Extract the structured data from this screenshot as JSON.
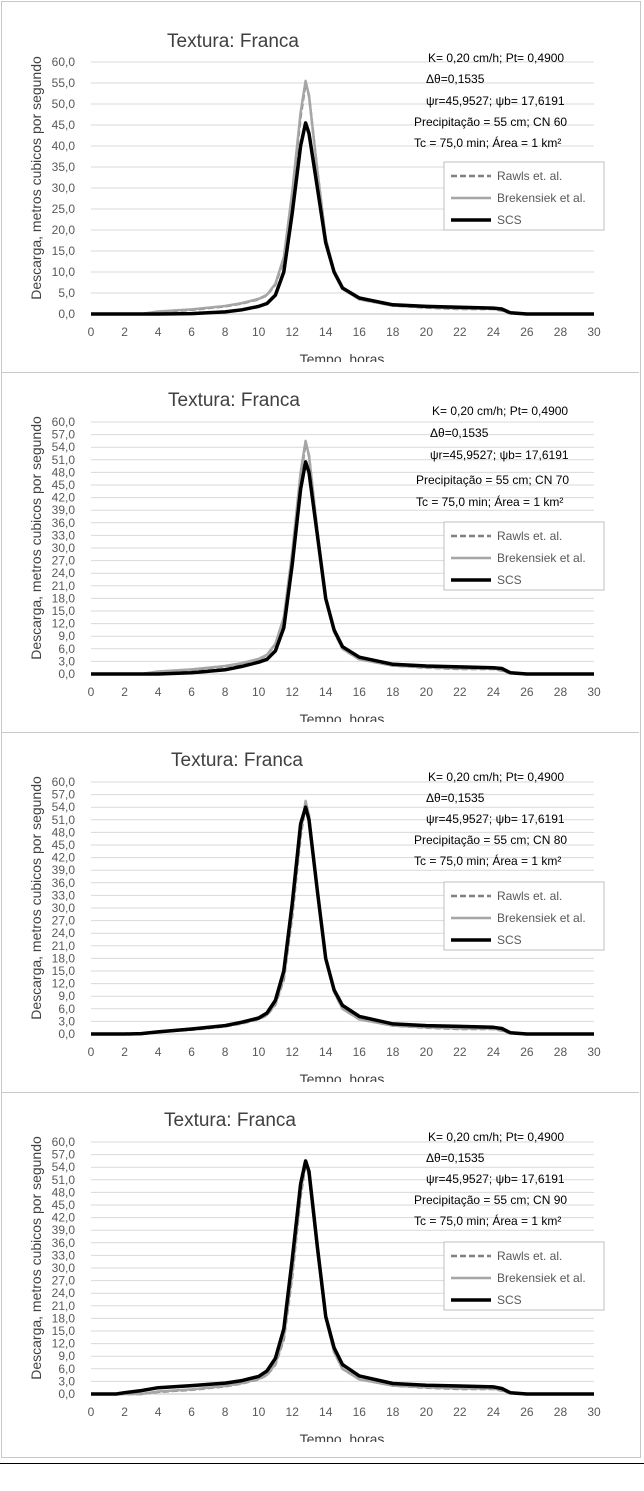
{
  "chart_data": [
    {
      "type": "line",
      "title": "Textura: Franca",
      "xlabel": "Tempo, horas",
      "ylabel": "Descarga, metros cubicos por segundo",
      "xlim": [
        0,
        30
      ],
      "ylim": [
        0,
        60
      ],
      "x_ticks": [
        "0",
        "2",
        "4",
        "6",
        "8",
        "10",
        "12",
        "14",
        "16",
        "18",
        "20",
        "22",
        "24",
        "26",
        "28",
        "30"
      ],
      "y_ticks": [
        "0,0",
        "5,0",
        "10,0",
        "15,0",
        "20,0",
        "25,0",
        "30,0",
        "35,0",
        "40,0",
        "45,0",
        "50,0",
        "55,0",
        "60,0"
      ],
      "annotations": [
        "K= 0,20 cm/h; Pt= 0,4900",
        "Δθ=0,1535",
        "ψr=45,9527;  ψb= 17,6191",
        "Precipitação = 55  cm; CN 60",
        "Tc = 75,0  min; Área = 1 km²"
      ],
      "legend": "right",
      "series": [
        {
          "name": "Rawls et. al.",
          "color": "#808080",
          "style": "dashed",
          "x": [
            0,
            3,
            4,
            6,
            8,
            9,
            10,
            10.5,
            11,
            11.5,
            12,
            12.5,
            12.8,
            13,
            13.5,
            14,
            14.5,
            15,
            16,
            18,
            20,
            22,
            24,
            24.5,
            25,
            26,
            30
          ],
          "y": [
            0,
            0,
            0.5,
            1.0,
            1.8,
            2.5,
            3.5,
            4.5,
            7,
            13,
            28,
            47,
            55,
            52,
            34,
            18,
            10,
            6,
            3.5,
            2,
            1.5,
            1.2,
            1.2,
            0.8,
            0.2,
            0,
            0
          ]
        },
        {
          "name": "Brekensiek et al.",
          "color": "#a6a6a6",
          "style": "solid",
          "x": [
            0,
            3,
            4,
            6,
            8,
            9,
            10,
            10.5,
            11,
            11.5,
            12,
            12.5,
            12.8,
            13,
            13.5,
            14,
            14.5,
            15,
            16,
            18,
            20,
            22,
            24,
            24.5,
            25,
            26,
            30
          ],
          "y": [
            0,
            0,
            0.6,
            1.1,
            1.9,
            2.6,
            3.6,
            4.6,
            7.2,
            13.5,
            29,
            48,
            55.5,
            52,
            34,
            18,
            10,
            6,
            3.5,
            2,
            1.6,
            1.3,
            1.3,
            0.9,
            0.2,
            0,
            0
          ]
        },
        {
          "name": "SCS",
          "color": "#000000",
          "style": "solid",
          "x": [
            0,
            4,
            6,
            8,
            9,
            10,
            10.5,
            11,
            11.5,
            12,
            12.5,
            12.8,
            13,
            13.5,
            14,
            14.5,
            15,
            16,
            18,
            20,
            22,
            24,
            24.5,
            25,
            26,
            30
          ],
          "y": [
            0,
            0,
            0.1,
            0.5,
            1.0,
            1.8,
            2.5,
            4.5,
            10,
            24,
            40,
            45.5,
            43,
            30,
            17,
            10,
            6.2,
            3.8,
            2.2,
            1.8,
            1.6,
            1.4,
            1.2,
            0.3,
            0,
            0
          ]
        }
      ]
    },
    {
      "type": "line",
      "title": "Textura: Franca",
      "xlabel": "Tempo, horas",
      "ylabel": "Descarga, metros cubicos por segundo",
      "xlim": [
        0,
        30
      ],
      "ylim": [
        0,
        60
      ],
      "x_ticks": [
        "0",
        "2",
        "4",
        "6",
        "8",
        "10",
        "12",
        "14",
        "16",
        "18",
        "20",
        "22",
        "24",
        "26",
        "28",
        "30"
      ],
      "y_ticks": [
        "0,0",
        "3,0",
        "6,0",
        "9,0",
        "12,0",
        "15,0",
        "18,0",
        "21,0",
        "24,0",
        "27,0",
        "30,0",
        "33,0",
        "36,0",
        "39,0",
        "42,0",
        "45,0",
        "48,0",
        "51,0",
        "54,0",
        "57,0",
        "60,0"
      ],
      "annotations": [
        "K= 0,20 cm/h; Pt= 0,4900",
        "Δθ=0,1535",
        "ψr=45,9527;  ψb= 17,6191",
        "Precipitação = 55  cm; CN 70",
        "Tc = 75,0  min; Área = 1 km²"
      ],
      "legend": "right",
      "series": [
        {
          "name": "Rawls et. al.",
          "color": "#808080",
          "style": "dashed",
          "x": [
            0,
            3,
            4,
            6,
            8,
            9,
            10,
            10.5,
            11,
            11.5,
            12,
            12.5,
            12.8,
            13,
            13.5,
            14,
            14.5,
            15,
            16,
            18,
            20,
            22,
            24,
            24.5,
            25,
            26,
            30
          ],
          "y": [
            0,
            0,
            0.5,
            1.0,
            1.8,
            2.5,
            3.5,
            4.5,
            7,
            13,
            28,
            47,
            55,
            52,
            34,
            18,
            10,
            6,
            3.5,
            2,
            1.5,
            1.2,
            1.2,
            0.8,
            0.2,
            0,
            0
          ]
        },
        {
          "name": "Brekensiek et al.",
          "color": "#a6a6a6",
          "style": "solid",
          "x": [
            0,
            3,
            4,
            6,
            8,
            9,
            10,
            10.5,
            11,
            11.5,
            12,
            12.5,
            12.8,
            13,
            13.5,
            14,
            14.5,
            15,
            16,
            18,
            20,
            22,
            24,
            24.5,
            25,
            26,
            30
          ],
          "y": [
            0,
            0,
            0.6,
            1.1,
            1.9,
            2.6,
            3.6,
            4.6,
            7.2,
            13.5,
            29,
            48,
            55.5,
            52,
            34,
            18,
            10,
            6,
            3.5,
            2,
            1.6,
            1.3,
            1.3,
            0.9,
            0.2,
            0,
            0
          ]
        },
        {
          "name": "SCS",
          "color": "#000000",
          "style": "solid",
          "x": [
            0,
            4,
            6,
            8,
            9,
            10,
            10.5,
            11,
            11.5,
            12,
            12.5,
            12.8,
            13,
            13.5,
            14,
            14.5,
            15,
            16,
            18,
            20,
            22,
            24,
            24.5,
            25,
            26,
            30
          ],
          "y": [
            0,
            0,
            0.3,
            1.0,
            1.8,
            2.8,
            3.5,
            5.5,
            11,
            26,
            44,
            50.5,
            48,
            33,
            18,
            10.5,
            6.5,
            4,
            2.3,
            1.9,
            1.7,
            1.5,
            1.3,
            0.3,
            0,
            0
          ]
        }
      ]
    },
    {
      "type": "line",
      "title": "Textura: Franca",
      "xlabel": "Tempo, horas",
      "ylabel": "Descarga, metros cubicos por segundo",
      "xlim": [
        0,
        30
      ],
      "ylim": [
        0,
        60
      ],
      "x_ticks": [
        "0",
        "2",
        "4",
        "6",
        "8",
        "10",
        "12",
        "14",
        "16",
        "18",
        "20",
        "22",
        "24",
        "26",
        "28",
        "30"
      ],
      "y_ticks": [
        "0,0",
        "3,0",
        "6,0",
        "9,0",
        "12,0",
        "15,0",
        "18,0",
        "21,0",
        "24,0",
        "27,0",
        "30,0",
        "33,0",
        "36,0",
        "39,0",
        "42,0",
        "45,0",
        "48,0",
        "51,0",
        "54,0",
        "57,0",
        "60,0"
      ],
      "annotations": [
        "K= 0,20 cm/h; Pt= 0,4900",
        "Δθ=0,1535",
        "ψr=45,9527;  ψb= 17,6191",
        "Precipitação = 55  cm; CN 80",
        "Tc = 75,0  min; Área = 1 km²"
      ],
      "legend": "right",
      "series": [
        {
          "name": "Rawls et. al.",
          "color": "#808080",
          "style": "dashed",
          "x": [
            0,
            3,
            4,
            6,
            8,
            9,
            10,
            10.5,
            11,
            11.5,
            12,
            12.5,
            12.8,
            13,
            13.5,
            14,
            14.5,
            15,
            16,
            18,
            20,
            22,
            24,
            24.5,
            25,
            26,
            30
          ],
          "y": [
            0,
            0,
            0.5,
            1.0,
            1.8,
            2.5,
            3.5,
            4.5,
            7,
            13,
            28,
            47,
            55,
            52,
            34,
            18,
            10,
            6,
            3.5,
            2,
            1.5,
            1.2,
            1.2,
            0.8,
            0.2,
            0,
            0
          ]
        },
        {
          "name": "Brekensiek et al.",
          "color": "#a6a6a6",
          "style": "solid",
          "x": [
            0,
            3,
            4,
            6,
            8,
            9,
            10,
            10.5,
            11,
            11.5,
            12,
            12.5,
            12.8,
            13,
            13.5,
            14,
            14.5,
            15,
            16,
            18,
            20,
            22,
            24,
            24.5,
            25,
            26,
            30
          ],
          "y": [
            0,
            0,
            0.6,
            1.1,
            1.9,
            2.6,
            3.6,
            4.6,
            7.2,
            13.5,
            29,
            48,
            55.5,
            52,
            34,
            18,
            10,
            6,
            3.5,
            2,
            1.6,
            1.3,
            1.3,
            0.9,
            0.2,
            0,
            0
          ]
        },
        {
          "name": "SCS",
          "color": "#000000",
          "style": "solid",
          "x": [
            0,
            2,
            3,
            4,
            6,
            8,
            9,
            10,
            10.5,
            11,
            11.5,
            12,
            12.5,
            12.8,
            13,
            13.5,
            14,
            14.5,
            15,
            16,
            18,
            20,
            22,
            24,
            24.5,
            25,
            26,
            30
          ],
          "y": [
            0,
            0,
            0.1,
            0.5,
            1.2,
            2.0,
            2.8,
            3.8,
            5.0,
            8,
            15,
            31,
            50,
            54,
            51,
            34,
            18,
            10.5,
            6.8,
            4.2,
            2.4,
            2.0,
            1.8,
            1.6,
            1.3,
            0.3,
            0,
            0
          ]
        }
      ]
    },
    {
      "type": "line",
      "title": "Textura: Franca",
      "xlabel": "Tempo, horas",
      "ylabel": "Descarga, metros cubicos por segundo",
      "xlim": [
        0,
        30
      ],
      "ylim": [
        0,
        60
      ],
      "x_ticks": [
        "0",
        "2",
        "4",
        "6",
        "8",
        "10",
        "12",
        "14",
        "16",
        "18",
        "20",
        "22",
        "24",
        "26",
        "28",
        "30"
      ],
      "y_ticks": [
        "0,0",
        "3,0",
        "6,0",
        "9,0",
        "12,0",
        "15,0",
        "18,0",
        "21,0",
        "24,0",
        "27,0",
        "30,0",
        "33,0",
        "36,0",
        "39,0",
        "42,0",
        "45,0",
        "48,0",
        "51,0",
        "54,0",
        "57,0",
        "60,0"
      ],
      "annotations": [
        "K= 0,20 cm/h; Pt= 0,4900",
        "Δθ=0,1535",
        "ψr=45,9527;  ψb= 17,6191",
        "Precipitação = 55  cm; CN 90",
        "Tc = 75,0  min; Área = 1 km²"
      ],
      "legend": "right",
      "series": [
        {
          "name": "Rawls et. al.",
          "color": "#808080",
          "style": "dashed",
          "x": [
            0,
            3,
            4,
            6,
            8,
            9,
            10,
            10.5,
            11,
            11.5,
            12,
            12.5,
            12.8,
            13,
            13.5,
            14,
            14.5,
            15,
            16,
            18,
            20,
            22,
            24,
            24.5,
            25,
            26,
            30
          ],
          "y": [
            0,
            0,
            0.5,
            1.0,
            1.8,
            2.5,
            3.5,
            4.5,
            7,
            13,
            28,
            47,
            55,
            52,
            34,
            18,
            10,
            6,
            3.5,
            2,
            1.5,
            1.2,
            1.2,
            0.8,
            0.2,
            0,
            0
          ]
        },
        {
          "name": "Brekensiek et al.",
          "color": "#a6a6a6",
          "style": "solid",
          "x": [
            0,
            3,
            4,
            6,
            8,
            9,
            10,
            10.5,
            11,
            11.5,
            12,
            12.5,
            12.8,
            13,
            13.5,
            14,
            14.5,
            15,
            16,
            18,
            20,
            22,
            24,
            24.5,
            25,
            26,
            30
          ],
          "y": [
            0,
            0,
            0.6,
            1.1,
            1.9,
            2.6,
            3.6,
            4.6,
            7.2,
            13.5,
            29,
            48,
            55.5,
            52,
            34,
            18,
            10,
            6,
            3.5,
            2,
            1.6,
            1.3,
            1.3,
            0.9,
            0.2,
            0,
            0
          ]
        },
        {
          "name": "SCS",
          "color": "#000000",
          "style": "solid",
          "x": [
            0,
            1.5,
            2,
            3,
            4,
            6,
            8,
            9,
            10,
            10.5,
            11,
            11.5,
            12,
            12.5,
            12.8,
            13,
            13.5,
            14,
            14.5,
            15,
            16,
            18,
            20,
            22,
            24,
            24.5,
            25,
            26,
            30
          ],
          "y": [
            0,
            0,
            0.3,
            0.8,
            1.5,
            2.0,
            2.6,
            3.2,
            4.2,
            5.5,
            8.5,
            15.5,
            32,
            50,
            55.5,
            53,
            35,
            18.5,
            11,
            7,
            4.3,
            2.5,
            2.1,
            1.9,
            1.7,
            1.3,
            0.3,
            0,
            0
          ]
        }
      ]
    }
  ]
}
